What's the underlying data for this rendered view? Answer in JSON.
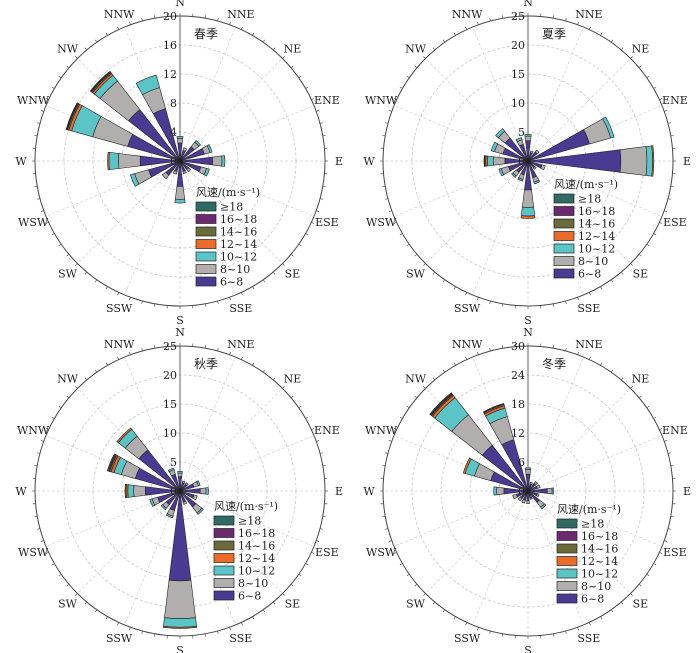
{
  "legend": {
    "title": "风速/(m·s⁻¹)",
    "bins": [
      {
        "label": "≥18",
        "color": "#2f6b63"
      },
      {
        "label": "16~18",
        "color": "#6b2a70"
      },
      {
        "label": "14~16",
        "color": "#6b6a3a"
      },
      {
        "label": "12~14",
        "color": "#ea6b2a"
      },
      {
        "label": "10~12",
        "color": "#5bc4c6"
      },
      {
        "label": "8~10",
        "color": "#b3aeae"
      },
      {
        "label": "6~8",
        "color": "#4a3a91"
      }
    ]
  },
  "directions": [
    "N",
    "NNE",
    "NE",
    "ENE",
    "E",
    "ESE",
    "SE",
    "SSE",
    "S",
    "SSW",
    "SW",
    "WSW",
    "W",
    "WNW",
    "NW",
    "NNW"
  ],
  "chart_data": [
    {
      "type": "polar-stacked-bar",
      "title": "春季",
      "rmax": 20,
      "ticks": [
        0,
        4,
        8,
        12,
        16,
        20
      ],
      "series_order": [
        "6~8",
        "8~10",
        "10~12",
        "12~14",
        "14~16",
        "16~18",
        "≥18"
      ],
      "segments": {
        "N": [
          2.5,
          0.6,
          0.3,
          0,
          0,
          0,
          0
        ],
        "NNE": [
          1.5,
          0.4,
          0,
          0,
          0,
          0,
          0
        ],
        "NE": [
          2.5,
          0.8,
          0.3,
          0,
          0,
          0,
          0
        ],
        "ENE": [
          3.5,
          0.8,
          0.3,
          0,
          0,
          0,
          0
        ],
        "E": [
          4.5,
          1.3,
          0.4,
          0,
          0,
          0,
          0
        ],
        "ESE": [
          3.0,
          0.8,
          0.4,
          0,
          0,
          0,
          0
        ],
        "SE": [
          1.5,
          0.4,
          0,
          0,
          0,
          0,
          0
        ],
        "SSE": [
          1.5,
          0.3,
          0,
          0,
          0,
          0,
          0
        ],
        "S": [
          3.5,
          1.8,
          0.5,
          0,
          0,
          0,
          0
        ],
        "SSW": [
          1.5,
          0.4,
          0,
          0,
          0,
          0,
          0
        ],
        "SW": [
          2.5,
          0.6,
          0,
          0,
          0,
          0,
          0
        ],
        "WSW": [
          4.5,
          2.0,
          0.6,
          0,
          0,
          0,
          0
        ],
        "W": [
          5.5,
          3.0,
          1.3,
          0.2,
          0,
          0,
          0
        ],
        "WNW": [
          7.5,
          5.0,
          3.0,
          0.4,
          0.2,
          0.1,
          0.1
        ],
        "NW": [
          9.0,
          5.0,
          1.0,
          0.3,
          0.2,
          0.1,
          0.1
        ],
        "NNW": [
          7.5,
          3.0,
          1.8,
          0,
          0,
          0,
          0
        ]
      }
    },
    {
      "type": "polar-stacked-bar",
      "title": "夏季",
      "rmax": 25,
      "ticks": [
        0,
        5,
        10,
        15,
        20,
        25
      ],
      "series_order": [
        "6~8",
        "8~10",
        "10~12",
        "12~14",
        "14~16",
        "16~18",
        "≥18"
      ],
      "segments": {
        "N": [
          3.5,
          0.8,
          0.3,
          0,
          0,
          0,
          0
        ],
        "NNE": [
          1.5,
          0.3,
          0,
          0,
          0,
          0,
          0
        ],
        "NE": [
          2.0,
          0.4,
          0,
          0,
          0,
          0,
          0
        ],
        "ENE": [
          11.0,
          3.8,
          0.6,
          0,
          0,
          0,
          0
        ],
        "E": [
          16.0,
          4.5,
          1.0,
          0.2,
          0,
          0,
          0
        ],
        "ESE": [
          2.5,
          0.6,
          0,
          0,
          0,
          0,
          0
        ],
        "SE": [
          1.5,
          0.3,
          0,
          0,
          0,
          0,
          0
        ],
        "SSE": [
          3.0,
          0.8,
          0.3,
          0,
          0,
          0,
          0
        ],
        "S": [
          5.0,
          3.0,
          1.5,
          0.4,
          0,
          0,
          0
        ],
        "SSW": [
          2.5,
          0.8,
          0.3,
          0,
          0,
          0,
          0
        ],
        "SW": [
          2.5,
          0.8,
          0.3,
          0,
          0,
          0,
          0
        ],
        "WSW": [
          3.5,
          1.3,
          0.4,
          0,
          0,
          0,
          0
        ],
        "W": [
          4.0,
          2.0,
          1.0,
          0.3,
          0.2,
          0.1,
          0
        ],
        "WNW": [
          4.5,
          1.5,
          0.6,
          0,
          0,
          0,
          0
        ],
        "NW": [
          5.0,
          1.5,
          0.6,
          0,
          0,
          0,
          0
        ],
        "NNW": [
          3.0,
          0.8,
          0.4,
          0,
          0,
          0,
          0
        ]
      }
    },
    {
      "type": "polar-stacked-bar",
      "title": "秋季",
      "rmax": 25,
      "ticks": [
        0,
        5,
        10,
        15,
        20,
        25
      ],
      "series_order": [
        "6~8",
        "8~10",
        "10~12",
        "12~14",
        "14~16",
        "16~18",
        "≥18"
      ],
      "segments": {
        "N": [
          2.5,
          0.6,
          0.3,
          0,
          0,
          0,
          0
        ],
        "NNE": [
          1.5,
          0.3,
          0,
          0,
          0,
          0,
          0
        ],
        "NE": [
          1.5,
          0.3,
          0,
          0,
          0,
          0,
          0
        ],
        "ENE": [
          2.5,
          0.8,
          0.3,
          0,
          0,
          0,
          0
        ],
        "E": [
          3.5,
          1.0,
          0.4,
          0,
          0,
          0,
          0
        ],
        "ESE": [
          2.5,
          0.6,
          0,
          0,
          0,
          0,
          0
        ],
        "SE": [
          3.5,
          1.3,
          0.3,
          0,
          0,
          0,
          0
        ],
        "SSE": [
          2.0,
          0.4,
          0,
          0,
          0,
          0,
          0
        ],
        "S": [
          15.5,
          6.5,
          1.5,
          0.2,
          0,
          0,
          0
        ],
        "SSW": [
          3.5,
          1.0,
          0.3,
          0,
          0,
          0,
          0
        ],
        "SW": [
          3.0,
          0.8,
          0.3,
          0,
          0,
          0,
          0
        ],
        "WSW": [
          4.0,
          1.0,
          0.4,
          0,
          0,
          0,
          0
        ],
        "W": [
          6.0,
          2.0,
          1.0,
          0.3,
          0.2,
          0,
          0
        ],
        "WNW": [
          8.0,
          2.5,
          1.3,
          0.5,
          0.3,
          0.2,
          0.2
        ],
        "NW": [
          9.0,
          3.0,
          1.5,
          0.3,
          0,
          0,
          0
        ],
        "NNW": [
          3.0,
          0.8,
          0.3,
          0,
          0,
          0,
          0
        ]
      }
    },
    {
      "type": "polar-stacked-bar",
      "title": "冬季",
      "rmax": 30,
      "ticks": [
        0,
        6,
        12,
        18,
        24,
        30
      ],
      "series_order": [
        "6~8",
        "8~10",
        "10~12",
        "12~14",
        "14~16",
        "16~18",
        "≥18"
      ],
      "segments": {
        "N": [
          3.5,
          1.0,
          0.3,
          0,
          0,
          0,
          0
        ],
        "NNE": [
          1.5,
          0.4,
          0,
          0,
          0,
          0,
          0
        ],
        "NE": [
          2.0,
          0.5,
          0,
          0,
          0,
          0,
          0
        ],
        "ENE": [
          2.0,
          0.6,
          0,
          0,
          0,
          0,
          0
        ],
        "E": [
          4.0,
          1.0,
          0.3,
          0,
          0,
          0,
          0
        ],
        "ESE": [
          2.0,
          0.4,
          0,
          0,
          0,
          0,
          0
        ],
        "SE": [
          3.0,
          1.3,
          0.4,
          0,
          0,
          0,
          0
        ],
        "SSE": [
          1.5,
          0.3,
          0,
          0,
          0,
          0,
          0
        ],
        "S": [
          2.0,
          0.6,
          0,
          0,
          0,
          0,
          0
        ],
        "SSW": [
          2.0,
          0.6,
          0,
          0,
          0,
          0,
          0
        ],
        "SW": [
          2.0,
          0.6,
          0,
          0,
          0,
          0,
          0
        ],
        "WSW": [
          2.5,
          0.8,
          0,
          0,
          0,
          0,
          0
        ],
        "W": [
          5.0,
          1.5,
          0.6,
          0,
          0,
          0,
          0
        ],
        "WNW": [
          8.0,
          3.5,
          2.0,
          0.4,
          0,
          0,
          0
        ],
        "NW": [
          12.0,
          8.0,
          4.5,
          0.6,
          0.3,
          0.2,
          0.2
        ],
        "NNW": [
          11.0,
          5.0,
          1.8,
          0.5,
          0.3,
          0.2,
          0
        ]
      }
    }
  ]
}
